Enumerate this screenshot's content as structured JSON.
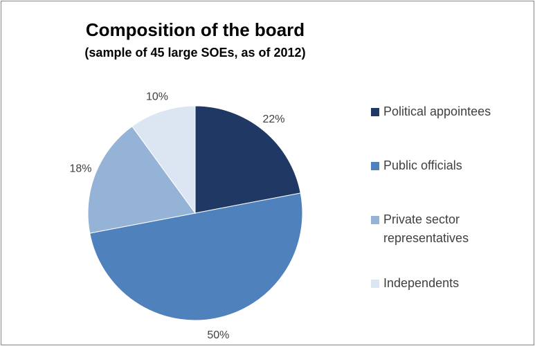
{
  "chart_data": {
    "type": "pie",
    "title": "Composition of the board",
    "subtitle": "(sample of 45 large SOEs, as of 2012)",
    "slices": [
      {
        "name": "Political appointees",
        "value": 22,
        "label": "22%",
        "color": "#1F3864"
      },
      {
        "name": "Public officials",
        "value": 50,
        "label": "50%",
        "color": "#4F81BD"
      },
      {
        "name": "Private sector representatives",
        "value": 18,
        "label": "18%",
        "color": "#95B3D7"
      },
      {
        "name": "Independents",
        "value": 10,
        "label": "10%",
        "color": "#DCE6F2"
      }
    ],
    "start_angle": "12 o'clock",
    "direction": "clockwise",
    "legend_position": "right"
  }
}
